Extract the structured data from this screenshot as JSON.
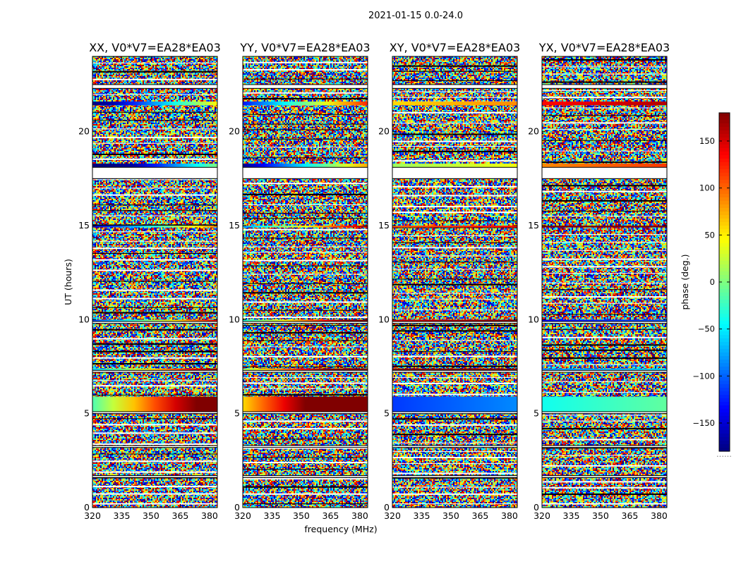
{
  "chart_data": {
    "type": "heatmap",
    "suptitle": "2021-01-15 0.0-24.0",
    "xlabel": "frequency (MHz)",
    "ylabel": "UT (hours)",
    "colorbar_label": "phase (deg.)",
    "colorbar_note": "......",
    "colormap": "jet",
    "value_range": [
      -180,
      180
    ],
    "colorbar_ticks": [
      150,
      100,
      50,
      0,
      -50,
      -100,
      -150
    ],
    "colorbar_tick_labels": [
      "150",
      "100",
      "50",
      "0",
      "−50",
      "−100",
      "−150"
    ],
    "xlim": [
      320,
      384
    ],
    "ylim": [
      0,
      24
    ],
    "xticks": [
      320,
      335,
      350,
      365,
      380
    ],
    "yticks": [
      0,
      5,
      10,
      15,
      20
    ],
    "panels": [
      {
        "title": "XX, V0*V7=EA28*EA03",
        "corr": "XX"
      },
      {
        "title": "YY, V0*V7=EA28*EA03",
        "corr": "YY"
      },
      {
        "title": "XY, V0*V7=EA28*EA03",
        "corr": "XY"
      },
      {
        "title": "YX, V0*V7=EA28*EA03",
        "corr": "YX"
      }
    ],
    "flagged_ut_ranges_hours": [
      [
        17.5,
        18.1
      ],
      [
        22.3,
        22.5
      ],
      [
        9.8,
        9.9
      ],
      [
        7.2,
        7.3
      ],
      [
        5.0,
        5.1
      ],
      [
        3.2,
        3.3
      ],
      [
        1.6,
        1.7
      ]
    ],
    "coherent_phase_ut_ranges_hours": [
      [
        18.1,
        18.3
      ],
      [
        21.4,
        21.6
      ],
      [
        14.9,
        15.0
      ],
      [
        9.9,
        10.0
      ],
      [
        7.3,
        7.4
      ],
      [
        5.1,
        5.9
      ]
    ]
  }
}
